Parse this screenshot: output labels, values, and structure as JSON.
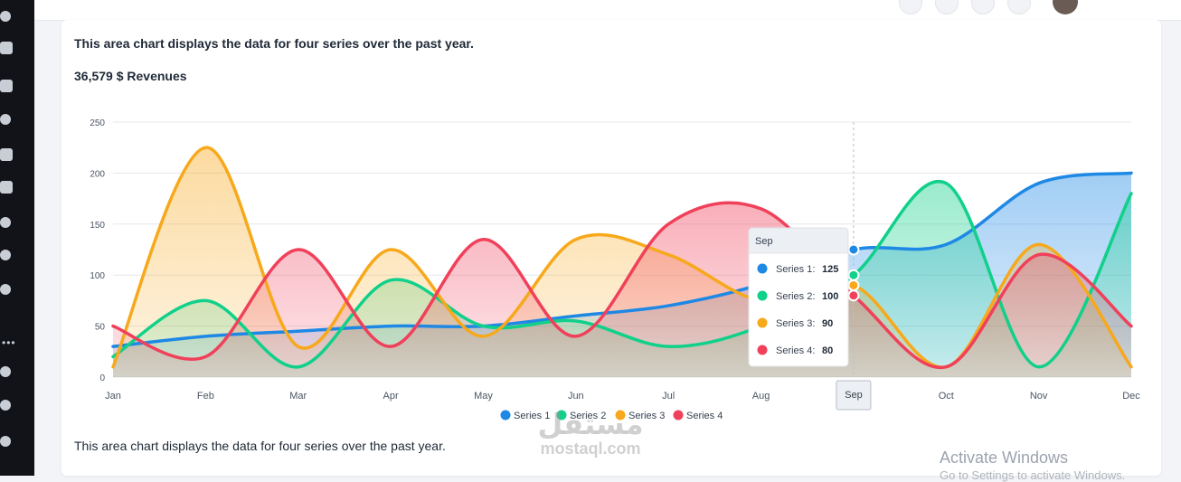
{
  "card": {
    "title": "This area chart displays the data for four series over the past year.",
    "subtitle": "36,579 $ Revenues",
    "footer": "This area chart displays the data for four series over the past year."
  },
  "chart_data": {
    "type": "area",
    "categories": [
      "Jan",
      "Feb",
      "Mar",
      "Apr",
      "May",
      "Jun",
      "Jul",
      "Aug",
      "Sep",
      "Oct",
      "Nov",
      "Dec"
    ],
    "ylim": [
      0,
      250
    ],
    "yticks": [
      0,
      50,
      100,
      150,
      200,
      250
    ],
    "grid": true,
    "legend_position": "bottom",
    "series": [
      {
        "name": "Series 1",
        "color": "#1e88e5",
        "values": [
          30,
          40,
          45,
          50,
          50,
          60,
          70,
          91,
          125,
          130,
          190,
          200
        ]
      },
      {
        "name": "Series 2",
        "color": "#10d08a",
        "values": [
          20,
          75,
          10,
          95,
          50,
          55,
          30,
          50,
          100,
          190,
          10,
          180
        ]
      },
      {
        "name": "Series 3",
        "color": "#f7a81b",
        "values": [
          10,
          225,
          30,
          125,
          40,
          135,
          120,
          75,
          90,
          10,
          130,
          10
        ]
      },
      {
        "name": "Series 4",
        "color": "#f0405a",
        "values": [
          50,
          20,
          125,
          30,
          135,
          40,
          150,
          165,
          80,
          10,
          120,
          50
        ]
      }
    ],
    "tooltip": {
      "category": "Sep",
      "rows": [
        {
          "name": "Series 1",
          "label": "Series 1:",
          "value": "125",
          "color": "#1e88e5"
        },
        {
          "name": "Series 2",
          "label": "Series 2:",
          "value": "100",
          "color": "#10d08a"
        },
        {
          "name": "Series 3",
          "label": "Series 3:",
          "value": "90",
          "color": "#f7a81b"
        },
        {
          "name": "Series 4",
          "label": "Series 4:",
          "value": "80",
          "color": "#f0405a"
        }
      ]
    }
  },
  "watermark": {
    "arabic": "مستقل",
    "latin": "mostaql.com"
  },
  "os_overlay": {
    "title": "Activate Windows",
    "subtitle": "Go to Settings to activate Windows."
  }
}
